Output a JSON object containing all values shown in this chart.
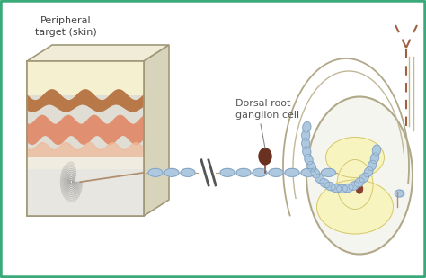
{
  "bg_color": "#ffffff",
  "border_color": "#3aaa7a",
  "title_text": "Peripheral\ntarget (skin)",
  "label_text": "Dorsal root\nganglion cell",
  "nerve_color": "#aec8e0",
  "nerve_edge_color": "#7a9ab8",
  "nerve_line_color": "#c09878",
  "ganglion_color": "#6a3020",
  "ganglion_stem_color": "#8a5040",
  "spinal_outline": "#b0a888",
  "spinal_white": "#f8f8f4",
  "gray_matter_fill": "#f8f4c0",
  "gray_matter_edge": "#d4c870",
  "dashed_color": "#a06040",
  "skin_cream": "#f5f0d0",
  "skin_brown": "#b87848",
  "skin_salmon": "#e09070",
  "skin_pink": "#f0b898",
  "skin_white": "#f0ede0",
  "skin_gray": "#e0ddd4",
  "box_edge": "#a09878",
  "box_top": "#f0ecd8",
  "box_right": "#d8d4bc",
  "corpuscle_color": "#909090",
  "axon_fiber_color": "#b09070",
  "break_color": "#555555"
}
